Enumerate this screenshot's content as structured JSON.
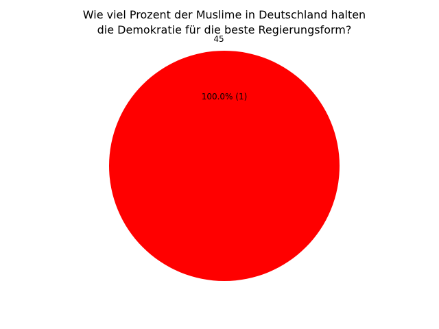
{
  "chart_data": {
    "type": "pie",
    "title_lines": [
      "Wie viel Prozent der Muslime in Deutschland halten",
      "die Demokratie für die beste Regierungsform?"
    ],
    "slices": [
      {
        "label": "45",
        "value": 1,
        "percent_label": "100.0%  (1)",
        "color": "#ff0000"
      }
    ]
  }
}
